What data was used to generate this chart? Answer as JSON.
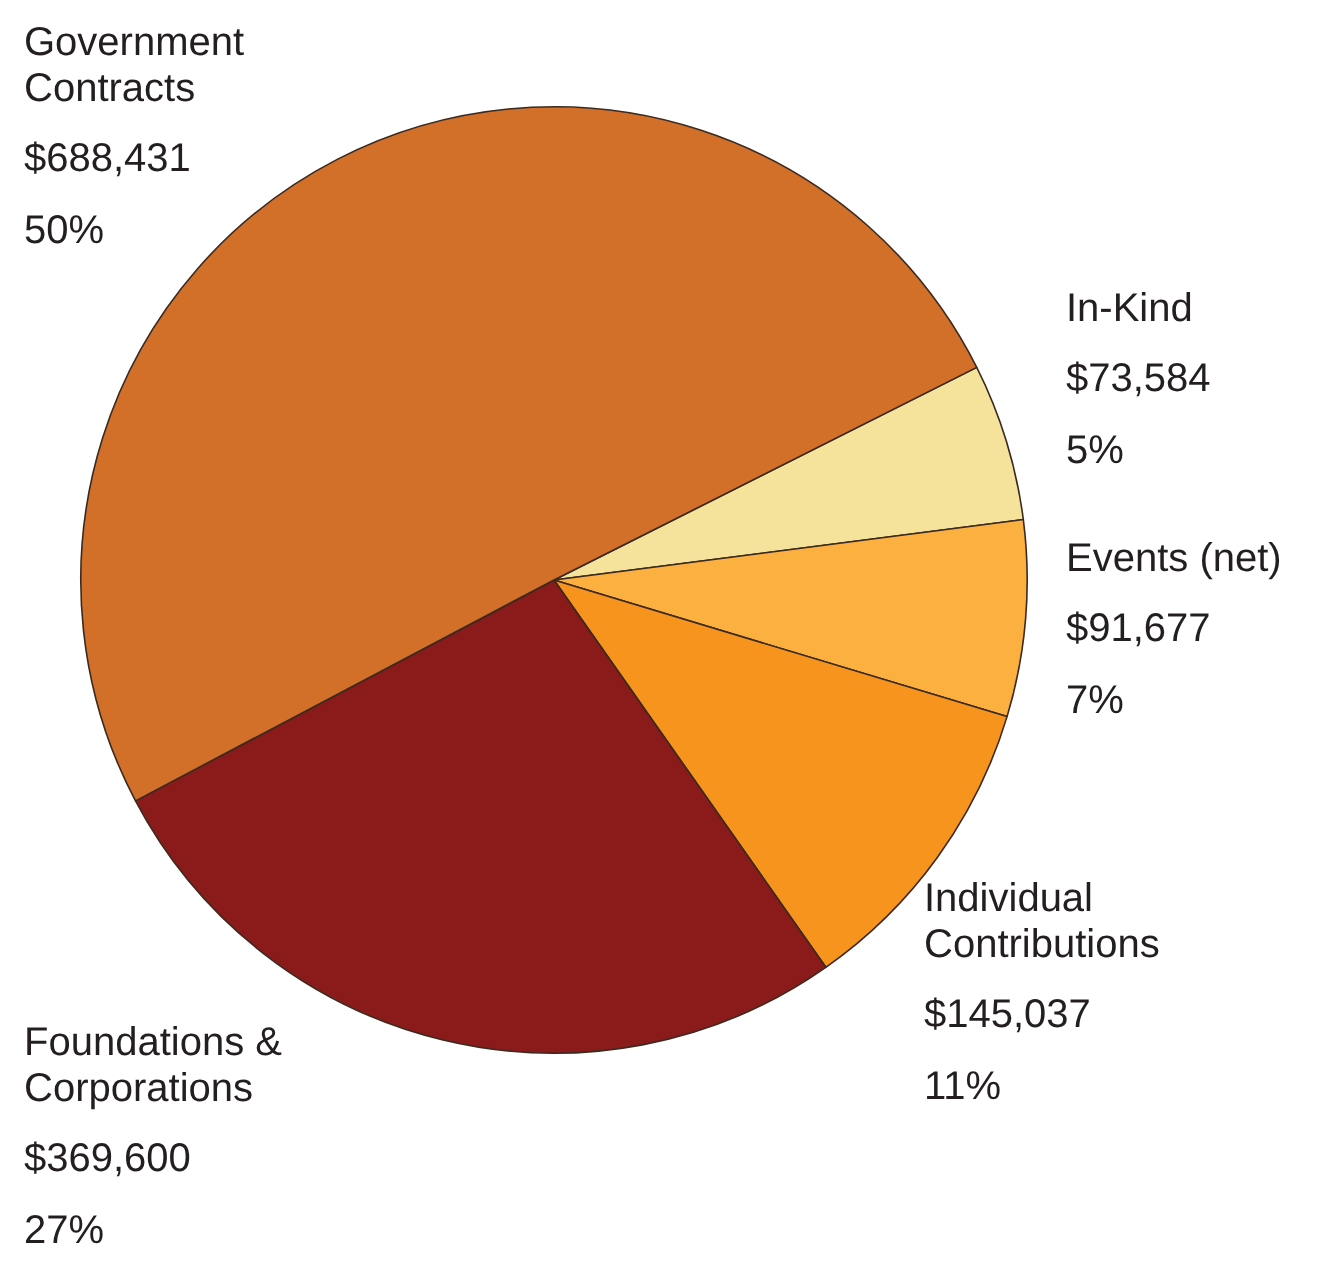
{
  "chart_data": {
    "type": "pie",
    "categories": [
      "In-Kind",
      "Events (net)",
      "Individual Contributions",
      "Foundations & Corporations",
      "Government Contracts"
    ],
    "values": [
      73584,
      91677,
      145037,
      369600,
      688431
    ],
    "colors": [
      "#f5e39b",
      "#fbb040",
      "#f7941d",
      "#8b1a1a",
      "#d2702a"
    ],
    "value_labels": [
      "$73,584\n5%",
      "$91,677\n7%",
      "$145,037\n11%",
      "$369,600\n27%",
      "$688,431\n50%"
    ],
    "legend": false
  }
}
